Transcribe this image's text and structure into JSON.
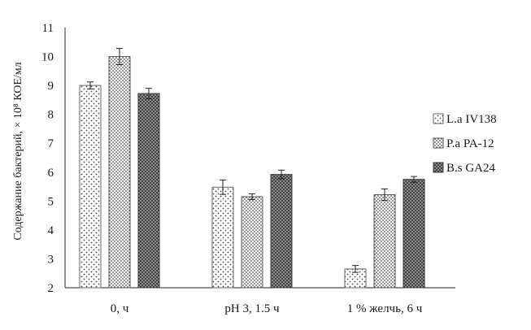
{
  "chart_data": {
    "type": "bar",
    "title": "",
    "xlabel": "",
    "ylabel": "Содержание бактерий, × 10⁸ КОЕ/мл",
    "ylim": [
      2,
      11
    ],
    "yticks": [
      "2",
      "3",
      "4",
      "5",
      "6",
      "7",
      "8",
      "9",
      "10",
      "11"
    ],
    "grid": false,
    "legend_position": "right",
    "categories": [
      "0, ч",
      "pH 3, 1.5 ч",
      "1 % желчь, 6 ч"
    ],
    "series": [
      {
        "name": "L.a IV138",
        "values": [
          9.0,
          5.48,
          2.65
        ],
        "errors": [
          0.12,
          0.25,
          0.12
        ],
        "pattern": "sparse-dots",
        "color": "#666666"
      },
      {
        "name": "P.a PA-12",
        "values": [
          10.0,
          5.15,
          5.22
        ],
        "errors": [
          0.28,
          0.1,
          0.2
        ],
        "pattern": "dense-dots",
        "color": "#5a5a5a"
      },
      {
        "name": "B.s GA24",
        "values": [
          8.72,
          5.92,
          5.75
        ],
        "errors": [
          0.18,
          0.15,
          0.1
        ],
        "pattern": "dark-dots",
        "color": "#3a3a3a"
      }
    ]
  }
}
